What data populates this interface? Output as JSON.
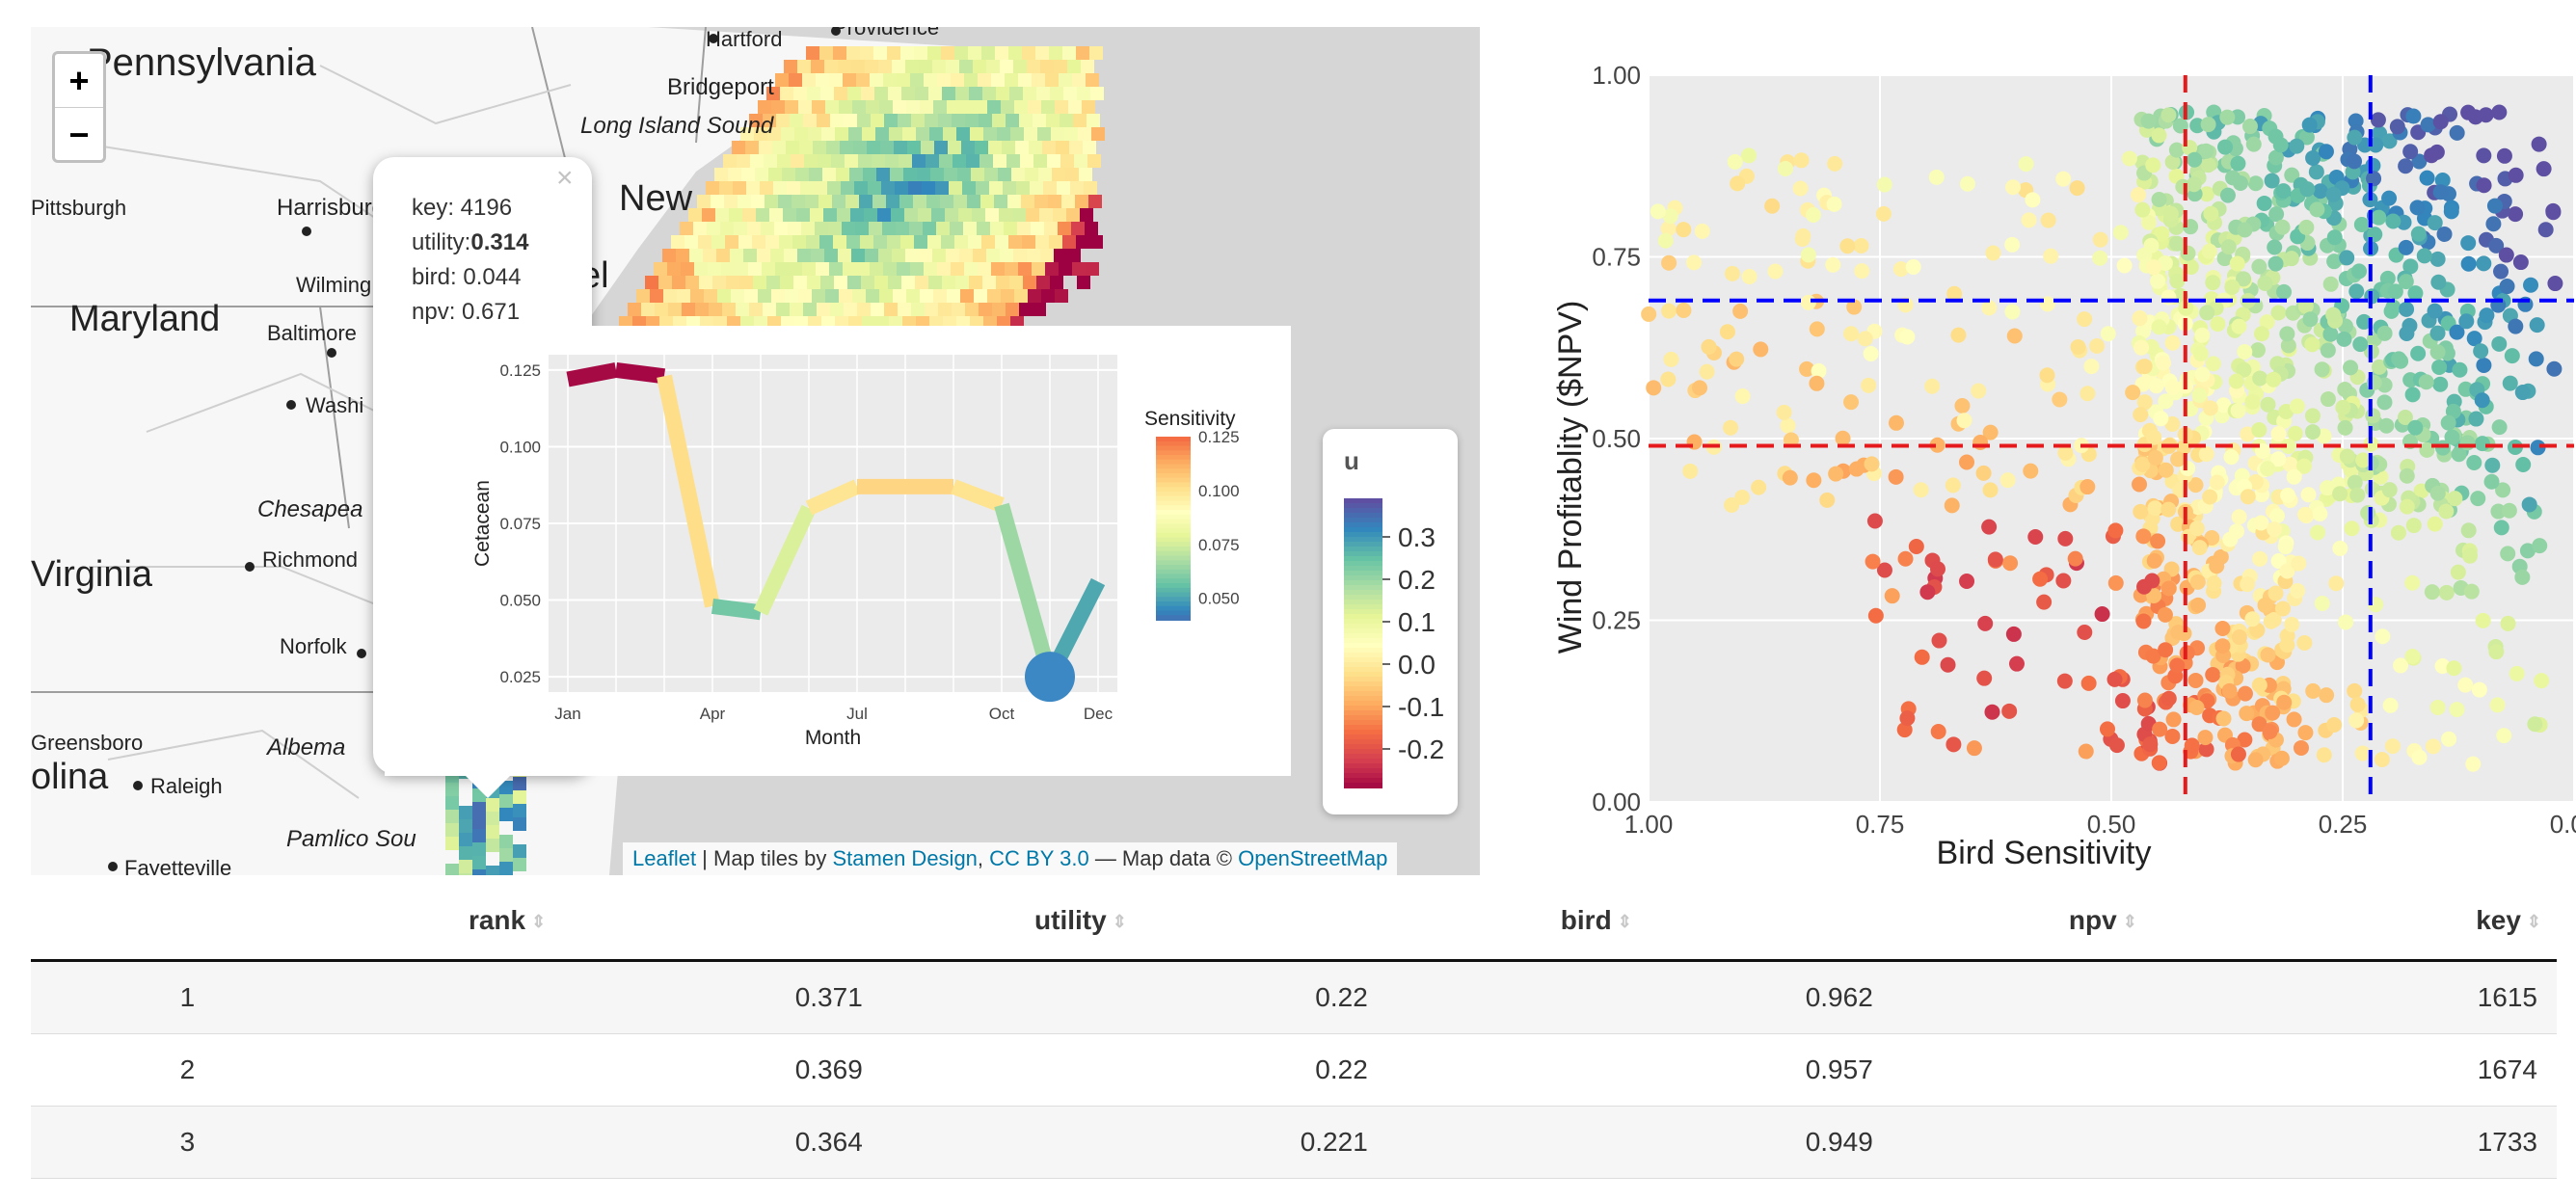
{
  "map": {
    "zoom_in_label": "+",
    "zoom_out_label": "−",
    "place_labels": [
      "Pennsylvania",
      "Hartford",
      "Providence",
      "Bridgeport",
      "Long Island Sound",
      "New",
      "Pittsburgh",
      "Harrisburg",
      "Wilming",
      "Maryland",
      "Baltimore",
      "Washi",
      "Virginia",
      "Richmond",
      "Chesapea",
      "Norfolk",
      "Greensboro",
      "olina",
      "Raleigh",
      "Albema",
      "Pamlico Sou",
      "Fayetteville",
      "el"
    ],
    "popup": {
      "close_label": "×",
      "key_label": "key: 4196",
      "utility_prefix": "utility:",
      "utility_value": "0.314",
      "bird_label": "bird: 0.044",
      "npv_label": "npv: 0.671"
    },
    "legend": {
      "title": "u",
      "ticks": [
        "0.3",
        "0.2",
        "0.1",
        "0.0",
        "-0.1",
        "-0.2"
      ]
    },
    "attribution": {
      "leaflet": "Leaflet",
      "sep1": " | Map tiles by ",
      "stamen": "Stamen Design",
      "sep2": ", ",
      "cc": "CC BY 3.0",
      "sep3": " — Map data © ",
      "osm": "OpenStreetMap"
    }
  },
  "colors": {
    "red_line": "#e41a1c",
    "blue_line": "#0000ff",
    "plot_bg": "#ebebeb",
    "link": "#0078a8"
  },
  "chart_data": [
    {
      "type": "line",
      "xlabel": "Month",
      "ylabel": "Cetacean",
      "x_ticks": [
        "Jan",
        "Apr",
        "Jul",
        "Oct",
        "Dec"
      ],
      "y_ticks": [
        "0.025",
        "0.050",
        "0.075",
        "0.100",
        "0.125"
      ],
      "ylim": [
        0.02,
        0.13
      ],
      "x": [
        1,
        2,
        3,
        4,
        5,
        6,
        7,
        8,
        9,
        10,
        11,
        12
      ],
      "values": [
        0.122,
        0.125,
        0.123,
        0.048,
        0.046,
        0.08,
        0.087,
        0.087,
        0.087,
        0.081,
        0.025,
        0.056
      ],
      "color_legend": {
        "title": "Sensitivity",
        "ticks": [
          "0.125",
          "0.100",
          "0.075",
          "0.050"
        ]
      },
      "highlight_month": 11
    },
    {
      "type": "scatter",
      "xlabel": "Bird Sensitivity",
      "ylabel": "Wind Profitablity ($NPV)",
      "x_ticks": [
        "1.00",
        "0.75",
        "0.50",
        "0.25",
        "0.00"
      ],
      "y_ticks": [
        "0.00",
        "0.25",
        "0.50",
        "0.75",
        "1.00"
      ],
      "xlim": [
        1.0,
        0.0
      ],
      "ylim": [
        0.0,
        1.0
      ],
      "x_reversed": true,
      "grid": true,
      "ref_lines": [
        {
          "orientation": "vertical",
          "value": 0.42,
          "color": "red"
        },
        {
          "orientation": "vertical",
          "value": 0.22,
          "color": "blue"
        },
        {
          "orientation": "horizontal",
          "value": 0.69,
          "color": "blue"
        },
        {
          "orientation": "horizontal",
          "value": 0.49,
          "color": "red"
        }
      ]
    }
  ],
  "table": {
    "headers": [
      "rank",
      "utility",
      "bird",
      "npv",
      "key"
    ],
    "rows": [
      [
        "1",
        "0.371",
        "0.22",
        "0.962",
        "1615"
      ],
      [
        "2",
        "0.369",
        "0.22",
        "0.957",
        "1674"
      ],
      [
        "3",
        "0.364",
        "0.221",
        "0.949",
        "1733"
      ]
    ]
  }
}
